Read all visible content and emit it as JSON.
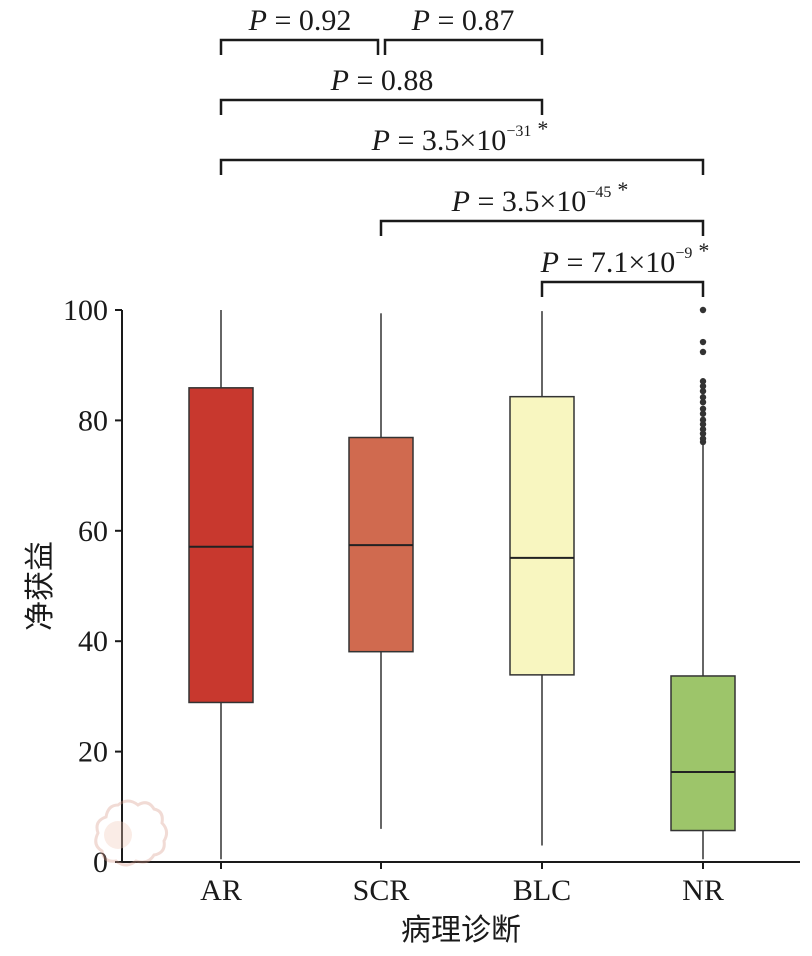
{
  "chart_data": {
    "type": "box",
    "xlabel": "病理诊断",
    "ylabel": "净获益",
    "ylim": [
      0,
      100
    ],
    "yticks": [
      0,
      20,
      40,
      60,
      80,
      100
    ],
    "categories": [
      "AR",
      "SCR",
      "BLC",
      "NR"
    ],
    "boxes": [
      {
        "category": "AR",
        "color": "#c8382e",
        "whisker_low": 0.5,
        "q1": 28.9,
        "median": 57.1,
        "q3": 85.9,
        "whisker_high": 100,
        "outliers": []
      },
      {
        "category": "SCR",
        "color": "#d06a4f",
        "whisker_low": 6.0,
        "q1": 38.1,
        "median": 57.4,
        "q3": 76.9,
        "whisker_high": 99.4,
        "outliers": []
      },
      {
        "category": "BLC",
        "color": "#f8f6c0",
        "whisker_low": 3.0,
        "q1": 33.9,
        "median": 55.1,
        "q3": 84.3,
        "whisker_high": 99.8,
        "outliers": []
      },
      {
        "category": "NR",
        "color": "#9dc56a",
        "whisker_low": 0.5,
        "q1": 5.7,
        "median": 16.3,
        "q3": 33.7,
        "whisker_high": 75.7,
        "outliers": [
          100,
          94.2,
          92.4,
          87.1,
          86.2,
          85.3,
          84.2,
          83.3,
          82.1,
          81.2,
          80.1,
          79.3,
          78.4,
          77.6,
          76.7,
          76.1
        ]
      }
    ],
    "comparisons": [
      {
        "from": "AR",
        "to": "SCR",
        "p_prefix": "P",
        "p_value": "0.92",
        "p_exponent": "",
        "significant": false
      },
      {
        "from": "SCR",
        "to": "BLC",
        "p_prefix": "P",
        "p_value": "0.87",
        "p_exponent": "",
        "significant": false
      },
      {
        "from": "AR",
        "to": "BLC",
        "p_prefix": "P",
        "p_value": "0.88",
        "p_exponent": "",
        "significant": false
      },
      {
        "from": "AR",
        "to": "NR",
        "p_prefix": "P",
        "p_value": "3.5×10",
        "p_exponent": "−31",
        "significant": true
      },
      {
        "from": "SCR",
        "to": "NR",
        "p_prefix": "P",
        "p_value": "3.5×10",
        "p_exponent": "−45",
        "significant": true
      },
      {
        "from": "BLC",
        "to": "NR",
        "p_prefix": "P",
        "p_value": "7.1×10",
        "p_exponent": "−9",
        "significant": true
      }
    ],
    "significance_marker": "*",
    "grid": false,
    "legend": "none"
  }
}
